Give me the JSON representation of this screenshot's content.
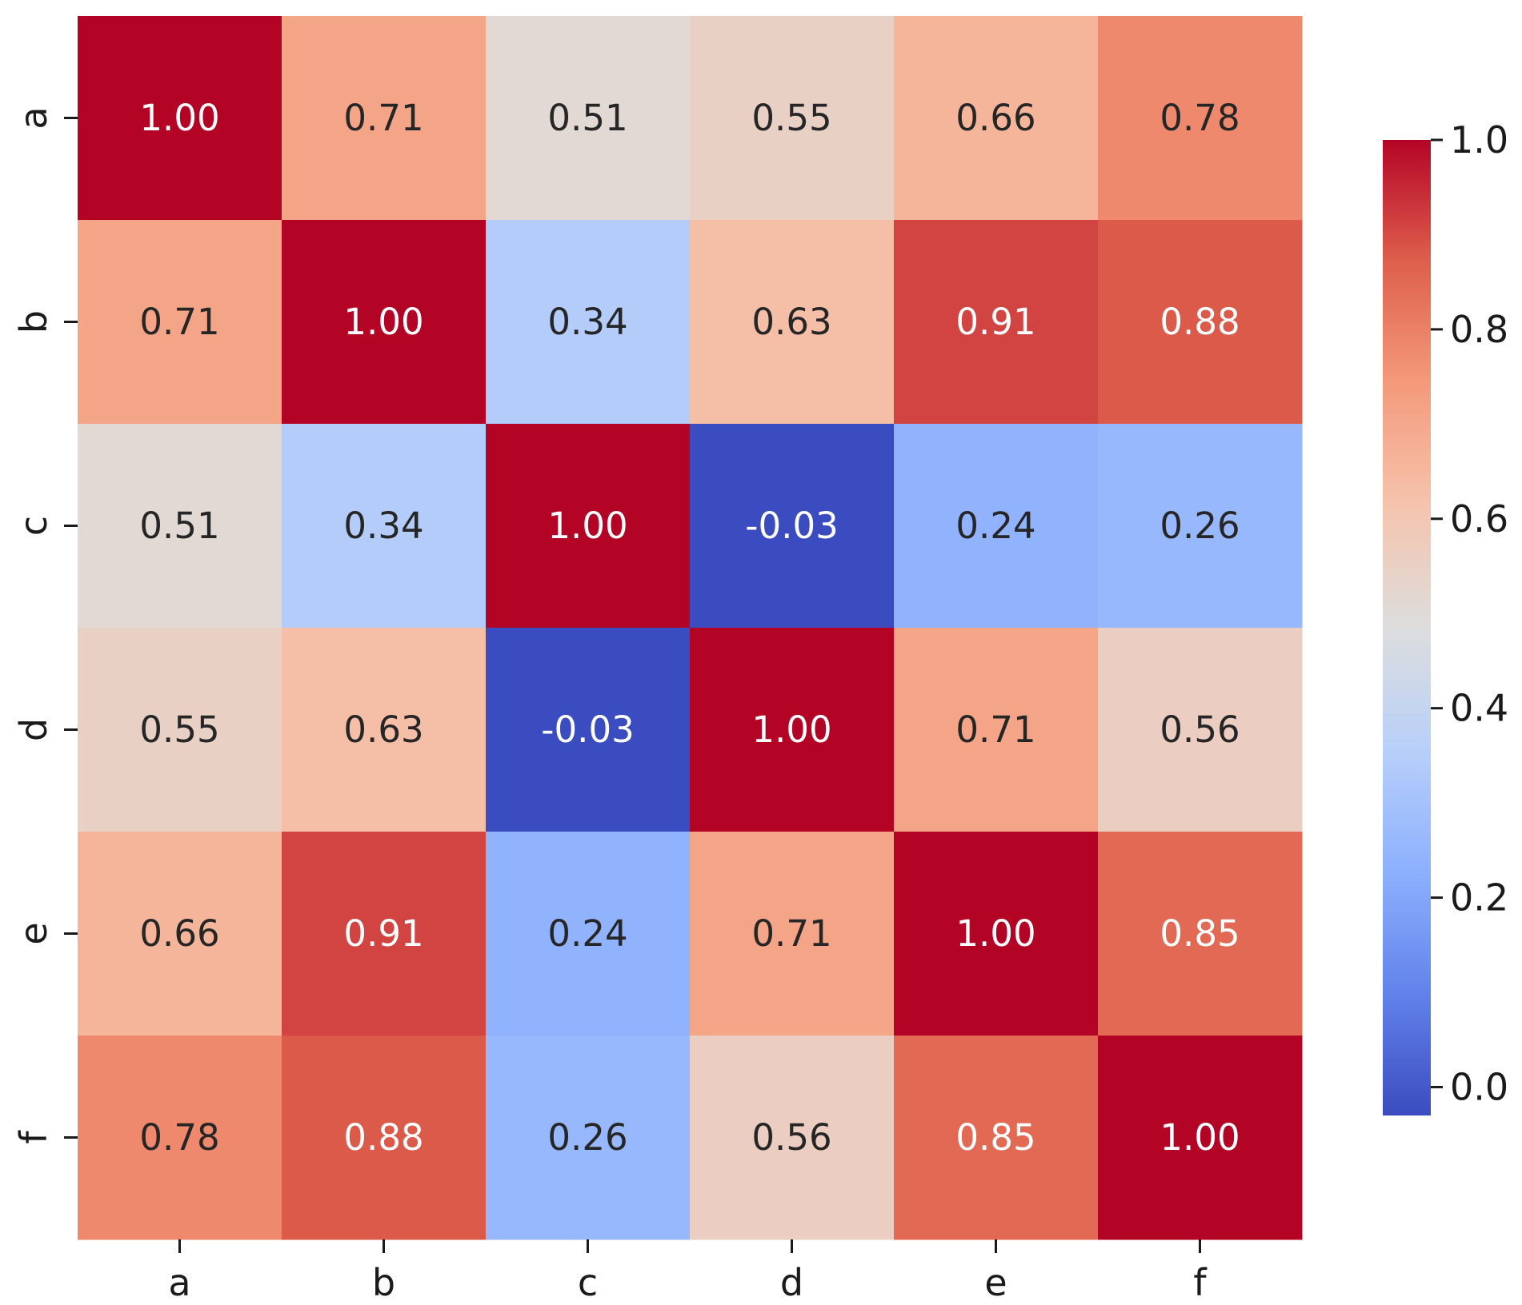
{
  "chart_data": {
    "type": "heatmap",
    "title": "",
    "xlabel": "",
    "ylabel": "",
    "x_categories": [
      "a",
      "b",
      "c",
      "d",
      "e",
      "f"
    ],
    "y_categories": [
      "a",
      "b",
      "c",
      "d",
      "e",
      "f"
    ],
    "values": [
      [
        1.0,
        0.71,
        0.51,
        0.55,
        0.66,
        0.78
      ],
      [
        0.71,
        1.0,
        0.34,
        0.63,
        0.91,
        0.88
      ],
      [
        0.51,
        0.34,
        1.0,
        -0.03,
        0.24,
        0.26
      ],
      [
        0.55,
        0.63,
        -0.03,
        1.0,
        0.71,
        0.56
      ],
      [
        0.66,
        0.91,
        0.24,
        0.71,
        1.0,
        0.85
      ],
      [
        0.78,
        0.88,
        0.26,
        0.56,
        0.85,
        1.0
      ]
    ],
    "cell_labels": [
      [
        "1.00",
        "0.71",
        "0.51",
        "0.55",
        "0.66",
        "0.78"
      ],
      [
        "0.71",
        "1.00",
        "0.34",
        "0.63",
        "0.91",
        "0.88"
      ],
      [
        "0.51",
        "0.34",
        "1.00",
        "-0.03",
        "0.24",
        "0.26"
      ],
      [
        "0.55",
        "0.63",
        "-0.03",
        "1.00",
        "0.71",
        "0.56"
      ],
      [
        "0.66",
        "0.91",
        "0.24",
        "0.71",
        "1.00",
        "0.85"
      ],
      [
        "0.78",
        "0.88",
        "0.26",
        "0.56",
        "0.85",
        "1.00"
      ]
    ],
    "colormap": "coolwarm",
    "value_range": [
      -0.03,
      1.0
    ],
    "colorbar": {
      "ticks": [
        0.0,
        0.2,
        0.4,
        0.6,
        0.8,
        1.0
      ],
      "tick_labels": [
        "0.0",
        "0.2",
        "0.4",
        "0.6",
        "0.8",
        "1.0"
      ],
      "placement": "right"
    },
    "colors": {
      "low": "#3b4cc0",
      "mid": "#dddddd",
      "high": "#b40426",
      "text_dark": "#262626",
      "text_light": "#ffffff"
    }
  }
}
